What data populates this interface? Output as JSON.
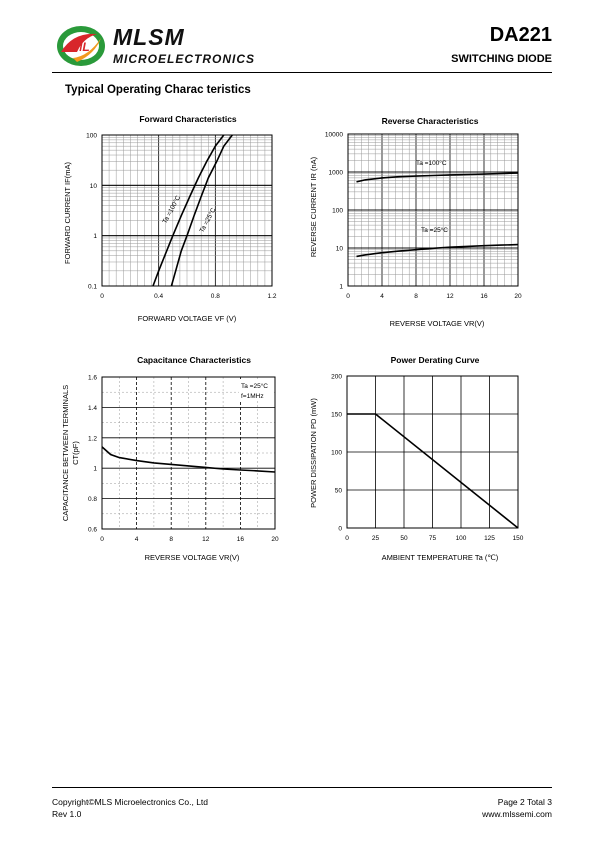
{
  "header": {
    "brand": "MLSM",
    "brand_sub": "MICROELECTRONICS",
    "part_number": "DA221",
    "part_type": "SWITCHING  DIODE",
    "logo_text": "ML"
  },
  "section_title": "Typical Operating Charac teristics",
  "chart_data": [
    {
      "type": "line",
      "title": "Forward  Characteristics",
      "xlabel": "FORWARD VOLTAGE  VF (V)",
      "ylabel": "FORWARD CURRENT    IF(mA)",
      "xlim": [
        0,
        1.2
      ],
      "ylim": [
        0.1,
        100
      ],
      "yscale": "log",
      "x_ticks": [
        "0",
        "0.4",
        "0.8",
        "1.2"
      ],
      "y_ticks": [
        "0.1",
        "1",
        "10",
        "100"
      ],
      "grid": true,
      "series": [
        {
          "name": "Ta =100°C",
          "x": [
            0.36,
            0.4,
            0.45,
            0.5,
            0.56,
            0.62,
            0.68,
            0.74,
            0.8,
            0.86
          ],
          "y": [
            0.1,
            0.2,
            0.45,
            1.0,
            2.5,
            6,
            14,
            30,
            60,
            100
          ]
        },
        {
          "name": "Ta =25°C",
          "x": [
            0.49,
            0.52,
            0.56,
            0.6,
            0.65,
            0.7,
            0.75,
            0.81,
            0.86,
            0.92
          ],
          "y": [
            0.1,
            0.2,
            0.5,
            1.0,
            2.5,
            6,
            14,
            30,
            60,
            100
          ]
        }
      ]
    },
    {
      "type": "line",
      "title": "Reverse  Characteristics",
      "xlabel": "REVERSE VOLTAGE    VR(V)",
      "ylabel": "REVERSE CURRENT   IR  (nA)",
      "xlim": [
        0,
        20
      ],
      "ylim": [
        1,
        10000
      ],
      "yscale": "log",
      "x_ticks": [
        "0",
        "4",
        "8",
        "12",
        "16",
        "20"
      ],
      "y_ticks": [
        "1",
        "10",
        "100",
        "1000",
        "10000"
      ],
      "grid": true,
      "series": [
        {
          "name": "Ta =100°C",
          "x": [
            1,
            2,
            4,
            6,
            8,
            10,
            12,
            14,
            16,
            18,
            20
          ],
          "y": [
            550,
            620,
            700,
            750,
            780,
            810,
            840,
            860,
            880,
            910,
            940
          ]
        },
        {
          "name": "Ta =25°C",
          "x": [
            1,
            2,
            4,
            6,
            8,
            10,
            12,
            14,
            16,
            18,
            20
          ],
          "y": [
            6.0,
            6.6,
            7.5,
            8.3,
            9.0,
            9.8,
            10.5,
            11.0,
            11.5,
            11.9,
            12.3
          ]
        }
      ]
    },
    {
      "type": "line",
      "title": "Capacitance Characteristics",
      "xlabel": "REVERSE VOLTAGE    VR(V)",
      "ylabel": "CAPACITANCE BETWEEN TERMINALS",
      "ylabel2": "CT(pF)",
      "xlim": [
        0,
        20
      ],
      "ylim": [
        0.6,
        1.6
      ],
      "x_ticks": [
        "0",
        "4",
        "8",
        "12",
        "16",
        "20"
      ],
      "y_ticks": [
        "0.6",
        "0.8",
        "1",
        "1.2",
        "1.4",
        "1.6"
      ],
      "grid": true,
      "annotation": [
        "Ta =25°C",
        "f=1MHz"
      ],
      "series": [
        {
          "name": "",
          "x": [
            0,
            1,
            2,
            4,
            6,
            8,
            10,
            12,
            14,
            16,
            18,
            20
          ],
          "y": [
            1.14,
            1.09,
            1.07,
            1.05,
            1.035,
            1.025,
            1.015,
            1.005,
            0.995,
            0.988,
            0.982,
            0.975
          ]
        }
      ]
    },
    {
      "type": "line",
      "title": "Power Derating Curve",
      "xlabel": "AMBIENT TEMPERATURE     Ta  (℃)",
      "ylabel": "POWER  DISSIPATION  PD  (mW)",
      "xlim": [
        0,
        150
      ],
      "ylim": [
        0,
        200
      ],
      "x_ticks": [
        "0",
        "25",
        "50",
        "75",
        "100",
        "125",
        "150"
      ],
      "y_ticks": [
        "0",
        "50",
        "100",
        "150",
        "200"
      ],
      "grid": true,
      "series": [
        {
          "name": "",
          "x": [
            0,
            25,
            150
          ],
          "y": [
            150,
            150,
            0
          ]
        }
      ]
    }
  ],
  "footer": {
    "copyright": "Copyright©MLS Microelectronics Co., Ltd",
    "revision": "Rev 1.0",
    "page": "Page 2 Total 3",
    "website": "www.mlssemi.com"
  },
  "colors": {
    "logo_green": "#2a9a3a",
    "logo_red": "#d8262b",
    "logo_orange": "#f29a1f"
  }
}
